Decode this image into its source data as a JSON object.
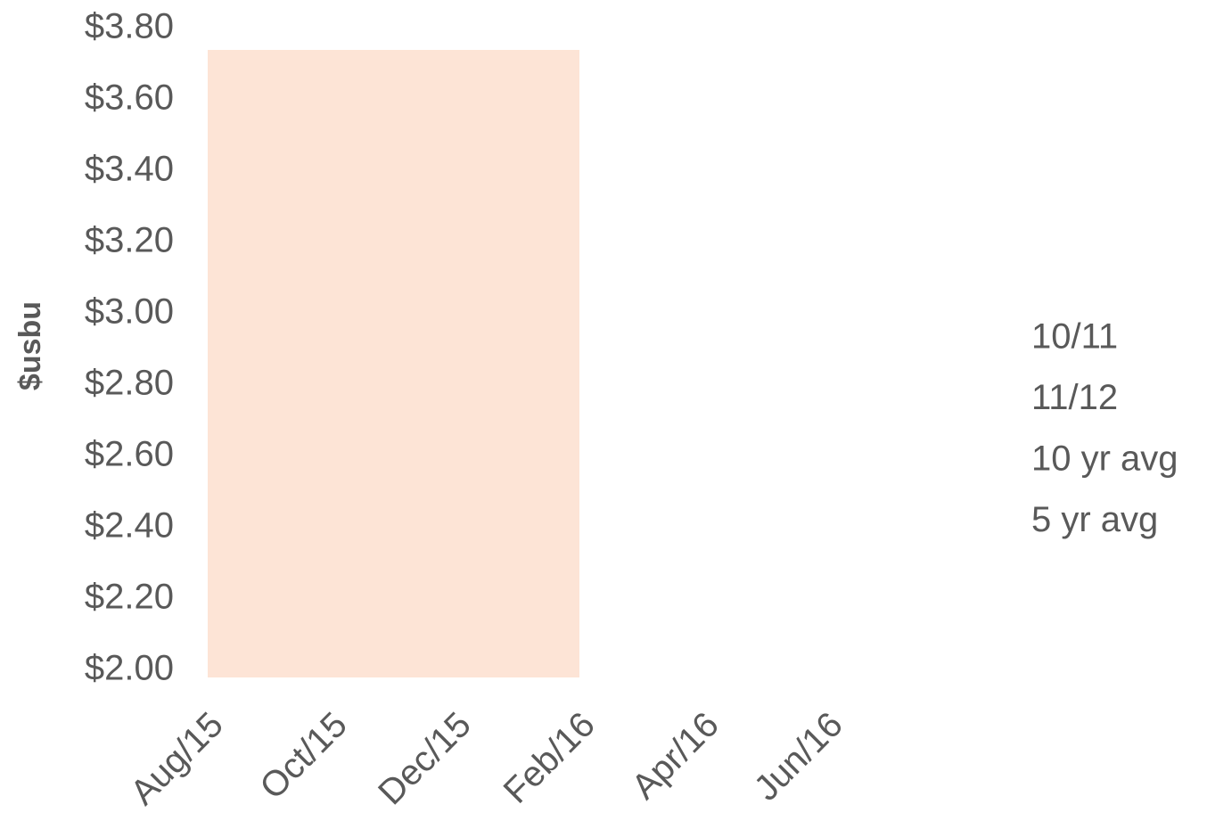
{
  "chart_data": {
    "type": "line",
    "y_label": "$usbu",
    "categories": [
      "Aug/15",
      "Oct/15",
      "Dec/15",
      "Feb/16",
      "Apr/16",
      "Jun/16"
    ],
    "series": [
      {
        "name": "10/11",
        "values": [
          null,
          null,
          null,
          null,
          null,
          null
        ]
      },
      {
        "name": "11/12",
        "values": [
          null,
          null,
          null,
          null,
          null,
          null
        ]
      },
      {
        "name": "10 yr avg",
        "values": [
          null,
          null,
          null,
          null,
          null,
          null
        ]
      },
      {
        "name": "5 yr avg",
        "values": [
          null,
          null,
          null,
          null,
          null,
          null
        ]
      }
    ],
    "shaded_region": {
      "x": [
        "Aug/15",
        "Feb/16"
      ],
      "y": [
        1.98,
        3.74
      ],
      "color": "#fde4d6"
    },
    "ylim": [
      1.98,
      3.8
    ],
    "yticks": [
      {
        "value": 2.0,
        "label": "$2.00"
      },
      {
        "value": 2.2,
        "label": "$2.20"
      },
      {
        "value": 2.4,
        "label": "$2.40"
      },
      {
        "value": 2.6,
        "label": "$2.60"
      },
      {
        "value": 2.8,
        "label": "$2.80"
      },
      {
        "value": 3.0,
        "label": "$3.00"
      },
      {
        "value": 3.2,
        "label": "$3.20"
      },
      {
        "value": 3.4,
        "label": "$3.40"
      },
      {
        "value": 3.6,
        "label": "$3.60"
      },
      {
        "value": 3.8,
        "label": "$3.80"
      }
    ],
    "grid": false
  }
}
